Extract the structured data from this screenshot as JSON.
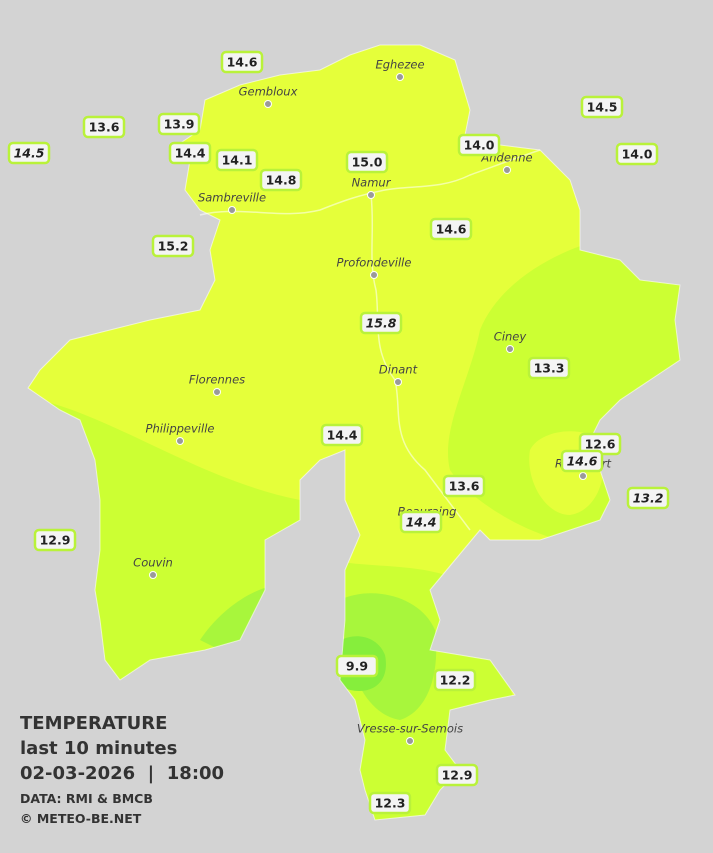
{
  "title": {
    "heading": "TEMPERATURE",
    "period": "last 10 minutes",
    "timestamp": "02-03-2026  |  18:00",
    "source": "DATA: RMI & BMCB",
    "credit": "© METEO-BE.NET"
  },
  "cities": [
    "Eghezee",
    "Gembloux",
    "Andenne",
    "Namur",
    "Sambreville",
    "Profondeville",
    "Ciney",
    "Dinant",
    "Florennes",
    "Philippeville",
    "Rochefort",
    "Beauraing",
    "Couvin",
    "Vresse-sur-Semois"
  ],
  "stations": [
    "14.6",
    "13.6",
    "13.9",
    "14.5",
    "14.4",
    "14.1",
    "14.8",
    "15.0",
    "14.0",
    "14.5",
    "14.0",
    "15.2",
    "14.6",
    "15.8",
    "13.3",
    "14.4",
    "12.6",
    "14.6",
    "13.6",
    "13.2",
    "14.4",
    "12.9",
    "9.9",
    "12.2",
    "12.9",
    "12.3"
  ]
}
